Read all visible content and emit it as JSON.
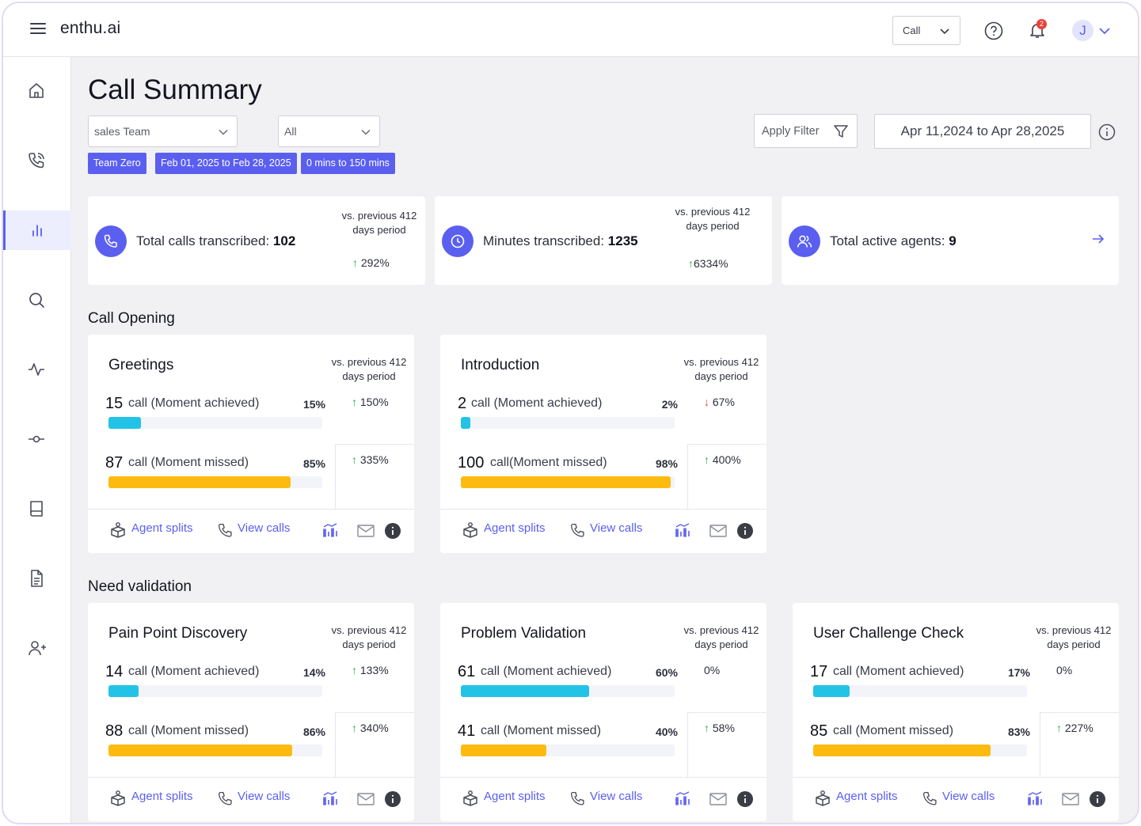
{
  "app": {
    "logo": "enthu.ai",
    "type_select": "Call",
    "notification_count": "2",
    "user_initial": "J"
  },
  "page": {
    "title": "Call Summary"
  },
  "filters": {
    "team_select": "sales Team",
    "second_select": "All",
    "chips": [
      "Team Zero",
      "Feb 01, 2025 to Feb 28, 2025",
      "0 mins to 150 mins"
    ],
    "apply_filter": "Apply Filter",
    "date_range": "Apr 11,2024 to Apr 28,2025"
  },
  "stats": [
    {
      "label": "Total calls transcribed: ",
      "value": "102",
      "vs": "vs. previous 412 days period",
      "change": "292%"
    },
    {
      "label": "Minutes transcribed: ",
      "value": "1235",
      "vs": "vs. previous 412 days period",
      "change": "6334%"
    },
    {
      "label": "Total active agents: ",
      "value": "9"
    }
  ],
  "sections": [
    {
      "title": "Call Opening",
      "cards": [
        {
          "title": "Greetings",
          "vs": "vs. previous 412 days period",
          "achieved": {
            "num": "15",
            "label": "call (Moment achieved)",
            "pct": "15%",
            "fraction": 0.15,
            "change": "150%",
            "dir": "up"
          },
          "missed": {
            "num": "87",
            "label": "call (Moment missed)",
            "pct": "85%",
            "fraction": 0.85,
            "change": "335%",
            "dir": "up"
          }
        },
        {
          "title": "Introduction",
          "vs": "vs. previous 412 days period",
          "achieved": {
            "num": "2",
            "label": "call (Moment achieved)",
            "pct": "2%",
            "fraction": 0.02,
            "change": "67%",
            "dir": "down"
          },
          "missed": {
            "num": "100",
            "label": "call(Moment missed)",
            "pct": "98%",
            "fraction": 0.98,
            "change": "400%",
            "dir": "up"
          }
        }
      ]
    },
    {
      "title": "Need validation",
      "cards": [
        {
          "title": "Pain Point Discovery",
          "vs": "vs. previous 412 days period",
          "achieved": {
            "num": "14",
            "label": "call (Moment achieved)",
            "pct": "14%",
            "fraction": 0.14,
            "change": "133%",
            "dir": "up"
          },
          "missed": {
            "num": "88",
            "label": "call (Moment missed)",
            "pct": "86%",
            "fraction": 0.86,
            "change": "340%",
            "dir": "up"
          }
        },
        {
          "title": "Problem Validation",
          "vs": "vs. previous 412 days period",
          "achieved": {
            "num": "61",
            "label": "call (Moment achieved)",
            "pct": "60%",
            "fraction": 0.6,
            "change": "0%",
            "dir": "none"
          },
          "missed": {
            "num": "41",
            "label": "call (Moment missed)",
            "pct": "40%",
            "fraction": 0.4,
            "change": "58%",
            "dir": "up"
          }
        },
        {
          "title": "User Challenge Check",
          "vs": "vs. previous 412 days period",
          "achieved": {
            "num": "17",
            "label": "call (Moment achieved)",
            "pct": "17%",
            "fraction": 0.17,
            "change": "0%",
            "dir": "none"
          },
          "missed": {
            "num": "85",
            "label": "call (Moment missed)",
            "pct": "83%",
            "fraction": 0.83,
            "change": "227%",
            "dir": "up"
          }
        }
      ]
    }
  ],
  "card_actions": {
    "agent_splits": "Agent splits",
    "view_calls": "View calls"
  },
  "colors": {
    "accent": "#5b5ff0",
    "achieved_bar": "#22c3e6",
    "missed_bar": "#fdbb11",
    "up": "#1fae4a",
    "down": "#e5483d"
  }
}
